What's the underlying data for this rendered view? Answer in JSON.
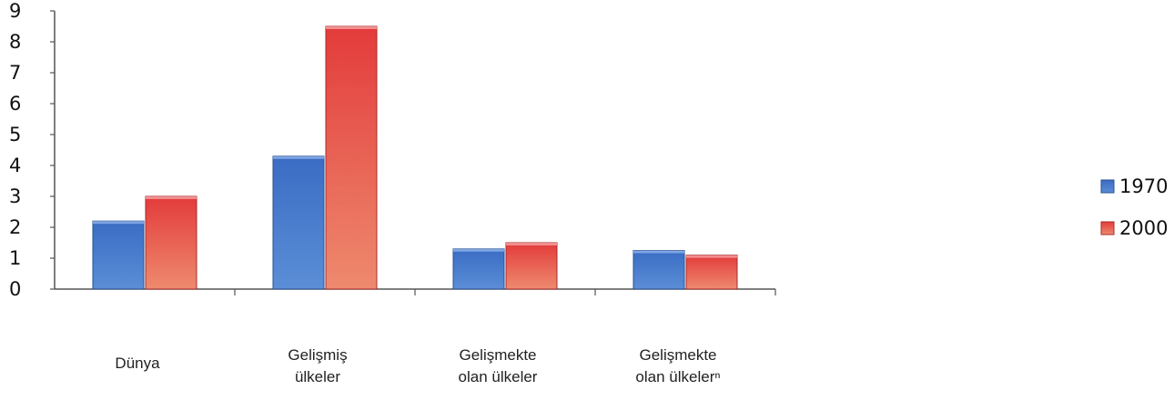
{
  "chart_data": {
    "type": "bar",
    "title": "",
    "xlabel": "",
    "ylabel": "",
    "ylim": [
      0,
      9
    ],
    "yticks": [
      "0",
      "1",
      "2",
      "3",
      "4",
      "5",
      "6",
      "7",
      "8",
      "9"
    ],
    "categories": [
      [
        "Dünya"
      ],
      [
        "Gelişmiş",
        "ülkeler"
      ],
      [
        "Gelişmekte",
        "olan ülkeler"
      ],
      [
        "Gelişmekte",
        "olan ülkelerⁿ"
      ]
    ],
    "series": [
      {
        "name": "1970",
        "values": [
          2.2,
          4.3,
          1.3,
          1.25
        ],
        "color": "#3f6fc0"
      },
      {
        "name": "2000",
        "values": [
          3.0,
          8.5,
          1.5,
          1.1
        ],
        "color": "#e03c3c"
      }
    ],
    "grid": false,
    "legend": "right"
  }
}
